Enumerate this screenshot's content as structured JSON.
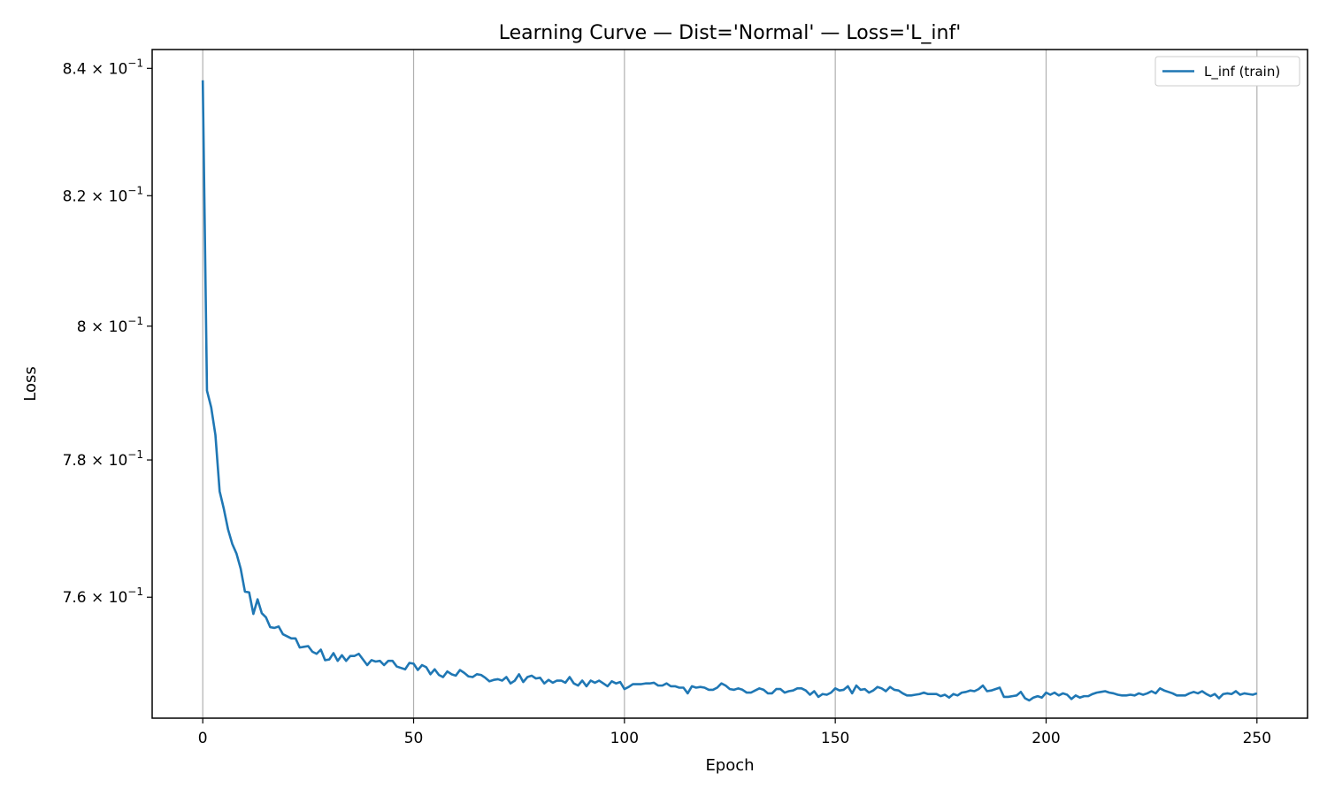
{
  "chart_data": {
    "type": "line",
    "title": "Learning Curve — Dist='Normal' — Loss='L_inf'",
    "xlabel": "Epoch",
    "ylabel": "Loss",
    "yscale": "log",
    "xlim": [
      -12,
      262
    ],
    "ylim": [
      0.7428,
      0.843
    ],
    "grid": "x-major only",
    "legend_placement": "top-right",
    "xticks": [
      0,
      50,
      100,
      150,
      200,
      250
    ],
    "yticks": [
      {
        "value": 0.76,
        "mantissa": "7.6"
      },
      {
        "value": 0.78,
        "mantissa": "7.8"
      },
      {
        "value": 0.8,
        "mantissa": "8"
      },
      {
        "value": 0.82,
        "mantissa": "8.2"
      },
      {
        "value": 0.84,
        "mantissa": "8.4"
      }
    ],
    "ytick_base": "10",
    "ytick_exponent": "−1",
    "series": [
      {
        "name": "L_inf (train)",
        "color": "#1f77b4",
        "values": [
          0.8381,
          0.7903,
          0.7878,
          0.7837,
          0.7754,
          0.7728,
          0.7698,
          0.7677,
          0.7663,
          0.7641,
          0.7608,
          0.7607,
          0.7576,
          0.7597,
          0.7577,
          0.7571,
          0.7557,
          0.7556,
          0.7558,
          0.7547,
          0.7544,
          0.7541,
          0.7541,
          0.7528,
          0.7529,
          0.753,
          0.7522,
          0.7519,
          0.7525,
          0.751,
          0.7511,
          0.752,
          0.7509,
          0.7517,
          0.7509,
          0.7516,
          0.7516,
          0.7519,
          0.7511,
          0.7503,
          0.751,
          0.7508,
          0.7509,
          0.7503,
          0.7509,
          0.7509,
          0.7501,
          0.7499,
          0.7497,
          0.7506,
          0.7505,
          0.7496,
          0.7503,
          0.75,
          0.749,
          0.7497,
          0.7489,
          0.7486,
          0.7494,
          0.749,
          0.7488,
          0.7496,
          0.7492,
          0.7487,
          0.7486,
          0.749,
          0.7489,
          0.7485,
          0.748,
          0.7482,
          0.7483,
          0.7481,
          0.7486,
          0.7477,
          0.7481,
          0.749,
          0.7479,
          0.7486,
          0.7488,
          0.7484,
          0.7485,
          0.7477,
          0.7482,
          0.7478,
          0.7481,
          0.7481,
          0.7478,
          0.7486,
          0.7477,
          0.7474,
          0.7481,
          0.7473,
          0.7481,
          0.7478,
          0.7481,
          0.7477,
          0.7473,
          0.748,
          0.7477,
          0.7479,
          0.7469,
          0.7472,
          0.7476,
          0.7476,
          0.7476,
          0.7477,
          0.7477,
          0.7478,
          0.7474,
          0.7474,
          0.7477,
          0.7473,
          0.7473,
          0.7471,
          0.7471,
          0.7463,
          0.7473,
          0.7471,
          0.7472,
          0.7471,
          0.7468,
          0.7468,
          0.7471,
          0.7477,
          0.7474,
          0.7469,
          0.7468,
          0.747,
          0.7468,
          0.7464,
          0.7464,
          0.7467,
          0.747,
          0.7468,
          0.7463,
          0.7463,
          0.7469,
          0.7469,
          0.7464,
          0.7466,
          0.7467,
          0.747,
          0.747,
          0.7467,
          0.7461,
          0.7466,
          0.7458,
          0.7462,
          0.7461,
          0.7464,
          0.747,
          0.7467,
          0.7468,
          0.7473,
          0.7463,
          0.7474,
          0.7468,
          0.7469,
          0.7464,
          0.7467,
          0.7472,
          0.747,
          0.7466,
          0.7472,
          0.7468,
          0.7467,
          0.7463,
          0.746,
          0.746,
          0.7461,
          0.7462,
          0.7464,
          0.7462,
          0.7462,
          0.7462,
          0.7459,
          0.7461,
          0.7457,
          0.7462,
          0.746,
          0.7464,
          0.7465,
          0.7467,
          0.7466,
          0.7469,
          0.7474,
          0.7466,
          0.7467,
          0.7469,
          0.7471,
          0.7458,
          0.7458,
          0.7459,
          0.746,
          0.7465,
          0.7456,
          0.7453,
          0.7457,
          0.7459,
          0.7457,
          0.7464,
          0.7461,
          0.7464,
          0.746,
          0.7463,
          0.7461,
          0.7455,
          0.746,
          0.7457,
          0.7459,
          0.7459,
          0.7462,
          0.7464,
          0.7465,
          0.7466,
          0.7464,
          0.7463,
          0.7461,
          0.746,
          0.746,
          0.7461,
          0.746,
          0.7463,
          0.7461,
          0.7463,
          0.7466,
          0.7463,
          0.747,
          0.7467,
          0.7465,
          0.7463,
          0.746,
          0.746,
          0.746,
          0.7463,
          0.7465,
          0.7463,
          0.7466,
          0.7462,
          0.7459,
          0.7462,
          0.7456,
          0.7462,
          0.7463,
          0.7462,
          0.7466,
          0.7461,
          0.7463,
          0.7462,
          0.7461,
          0.7463
        ]
      }
    ]
  }
}
